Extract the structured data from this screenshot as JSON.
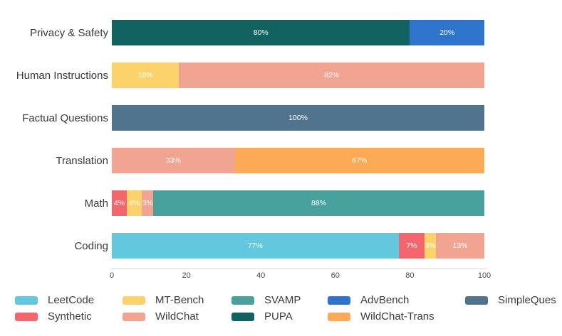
{
  "chart_data": {
    "type": "bar",
    "orientation": "horizontal",
    "stacked": true,
    "title": "",
    "xlabel": "",
    "ylabel": "",
    "xlim": [
      0,
      100
    ],
    "x_ticks": [
      "0",
      "20",
      "40",
      "60",
      "80",
      "100"
    ],
    "grid": false,
    "legend_position": "bottom",
    "unit": "%",
    "categories": [
      "Privacy & Safety",
      "Human Instructions",
      "Factual Questions",
      "Translation",
      "Math",
      "Coding"
    ],
    "rows": [
      {
        "category": "Privacy & Safety",
        "segments": [
          {
            "name": "PUPA",
            "value": 80,
            "label": "80%"
          },
          {
            "name": "AdvBench",
            "value": 20,
            "label": "20%"
          }
        ]
      },
      {
        "category": "Human Instructions",
        "segments": [
          {
            "name": "MT-Bench",
            "value": 18,
            "label": "18%"
          },
          {
            "name": "WildChat",
            "value": 82,
            "label": "82%"
          }
        ]
      },
      {
        "category": "Factual Questions",
        "segments": [
          {
            "name": "SimpleQues",
            "value": 100,
            "label": "100%"
          }
        ]
      },
      {
        "category": "Translation",
        "segments": [
          {
            "name": "WildChat",
            "value": 33,
            "label": "33%"
          },
          {
            "name": "WildChat-Trans",
            "value": 67,
            "label": "67%"
          }
        ]
      },
      {
        "category": "Math",
        "segments": [
          {
            "name": "Synthetic",
            "value": 4,
            "label": "4%"
          },
          {
            "name": "MT-Bench",
            "value": 4,
            "label": "4%"
          },
          {
            "name": "WildChat",
            "value": 3,
            "label": "3%"
          },
          {
            "name": "SVAMP",
            "value": 88,
            "label": "88%"
          }
        ]
      },
      {
        "category": "Coding",
        "segments": [
          {
            "name": "LeetCode",
            "value": 77,
            "label": "77%"
          },
          {
            "name": "Synthetic",
            "value": 7,
            "label": "7%"
          },
          {
            "name": "MT-Bench",
            "value": 3,
            "label": "3%"
          },
          {
            "name": "WildChat",
            "value": 13,
            "label": "13%"
          }
        ]
      }
    ],
    "colors": {
      "LeetCode": "#62c8dd",
      "Synthetic": "#f4666e",
      "MT-Bench": "#fcd36a",
      "WildChat": "#f2a493",
      "SVAMP": "#48a19c",
      "PUPA": "#12635f",
      "AdvBench": "#2e74cc",
      "WildChat-Trans": "#fcaa56",
      "SimpleQues": "#50748d"
    },
    "legend_rows": [
      [
        "LeetCode",
        "MT-Bench",
        "SVAMP",
        "AdvBench",
        "SimpleQues"
      ],
      [
        "Synthetic",
        "WildChat",
        "PUPA",
        "WildChat-Trans"
      ]
    ]
  }
}
